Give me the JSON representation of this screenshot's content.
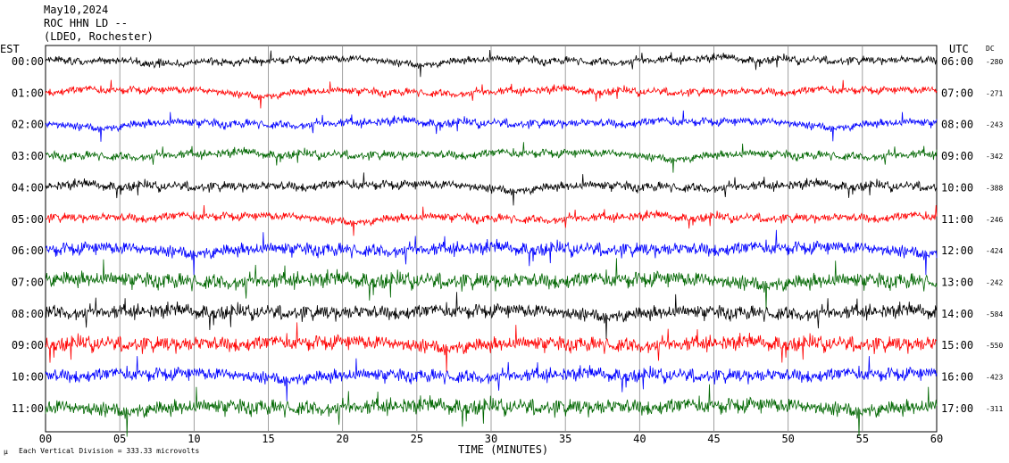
{
  "header": {
    "date": "May10,2024",
    "station": "ROC HHN LD --",
    "network": "(LDEO, Rochester)"
  },
  "corner": {
    "left_tz": "EST",
    "right_tz": "UTC",
    "dc_label": "DC"
  },
  "footer": {
    "scale_text": "Each Vertical Division = 333.33 microvolts",
    "scale_mark": "μ"
  },
  "colors": {
    "trace_cycle": [
      "#000000",
      "#ff0000",
      "#0000ff",
      "#006600"
    ],
    "grid": "#888888"
  },
  "chart_data": {
    "type": "line",
    "title": "",
    "xlabel": "TIME (MINUTES)",
    "ylabel": "",
    "xlim": [
      0,
      60
    ],
    "x_ticks": [
      "00",
      "05",
      "10",
      "15",
      "20",
      "25",
      "30",
      "35",
      "40",
      "45",
      "50",
      "55",
      "60"
    ],
    "grid": true,
    "rows": [
      {
        "est": "00:00",
        "utc": "06:00",
        "dc": "-280",
        "amplitude": 0.9
      },
      {
        "est": "01:00",
        "utc": "07:00",
        "dc": "-271",
        "amplitude": 0.9
      },
      {
        "est": "02:00",
        "utc": "08:00",
        "dc": "-243",
        "amplitude": 1.0
      },
      {
        "est": "03:00",
        "utc": "09:00",
        "dc": "-342",
        "amplitude": 1.0
      },
      {
        "est": "04:00",
        "utc": "10:00",
        "dc": "-388",
        "amplitude": 1.1
      },
      {
        "est": "05:00",
        "utc": "11:00",
        "dc": "-246",
        "amplitude": 1.0
      },
      {
        "est": "06:00",
        "utc": "12:00",
        "dc": "-424",
        "amplitude": 1.6
      },
      {
        "est": "07:00",
        "utc": "13:00",
        "dc": "-242",
        "amplitude": 1.9
      },
      {
        "est": "08:00",
        "utc": "14:00",
        "dc": "-584",
        "amplitude": 1.7
      },
      {
        "est": "09:00",
        "utc": "15:00",
        "dc": "-550",
        "amplitude": 1.8
      },
      {
        "est": "10:00",
        "utc": "16:00",
        "dc": "-423",
        "amplitude": 1.6
      },
      {
        "est": "11:00",
        "utc": "17:00",
        "dc": "-311",
        "amplitude": 1.9
      }
    ]
  }
}
